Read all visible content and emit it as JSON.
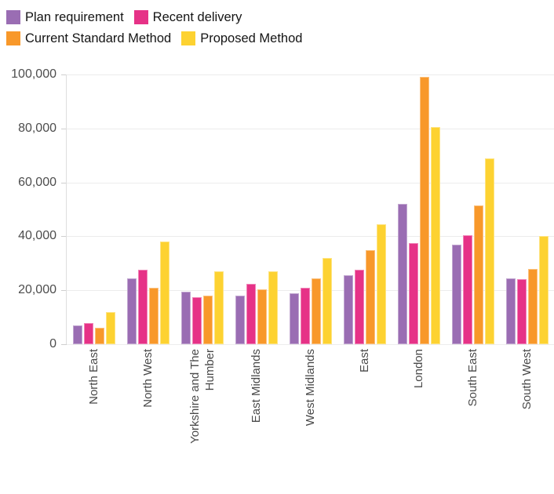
{
  "chart_data": {
    "type": "bar",
    "title": "",
    "xlabel": "",
    "ylabel": "",
    "categories": [
      "North East",
      "North West",
      "Yorkshire and The\nHumber",
      "East Midlands",
      "West Midlands",
      "East",
      "London",
      "South East",
      "South West"
    ],
    "series": [
      {
        "name": "Plan requirement",
        "color": "#9a6db3",
        "values": [
          7000,
          24500,
          19500,
          18000,
          19000,
          25500,
          52000,
          37000,
          24500
        ]
      },
      {
        "name": "Recent delivery",
        "color": "#e63287",
        "values": [
          8000,
          27500,
          17500,
          22500,
          21000,
          27500,
          37500,
          40500,
          24000
        ]
      },
      {
        "name": "Current Standard Method",
        "color": "#f8982a",
        "values": [
          6000,
          21000,
          18000,
          20500,
          24500,
          35000,
          99000,
          51500,
          28000
        ]
      },
      {
        "name": "Proposed Method",
        "color": "#fdd231",
        "values": [
          12000,
          38000,
          27000,
          27000,
          32000,
          44500,
          80500,
          69000,
          40000
        ]
      }
    ],
    "ylim": [
      0,
      100000
    ],
    "ytick_values": [
      0,
      20000,
      40000,
      60000,
      80000,
      100000
    ],
    "ytick_labels": [
      "0",
      "20,000",
      "40,000",
      "60,000",
      "80,000",
      "100,000"
    ],
    "grid": "horizontal",
    "legend_position": "top-left"
  },
  "colors": {
    "gridline": "#ececec",
    "axis": "#dedede",
    "tick": "#cfcfcf",
    "tick_text": "#4d4d4d",
    "category_text": "#4a4a4a",
    "legend_text": "#141414",
    "background": "#ffffff"
  }
}
